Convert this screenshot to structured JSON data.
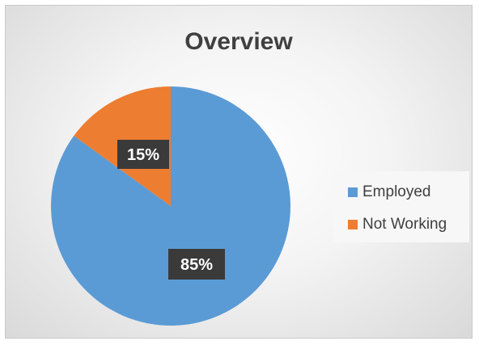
{
  "chart_data": {
    "type": "pie",
    "title": "Overview",
    "categories": [
      "Employed",
      "Not Working"
    ],
    "values": [
      85,
      15
    ],
    "data_labels": [
      "85%",
      "15%"
    ],
    "colors": [
      "#5B9BD5",
      "#ED7D31"
    ],
    "legend_position": "right",
    "start_angle": "12-o'clock",
    "direction": "clockwise"
  }
}
